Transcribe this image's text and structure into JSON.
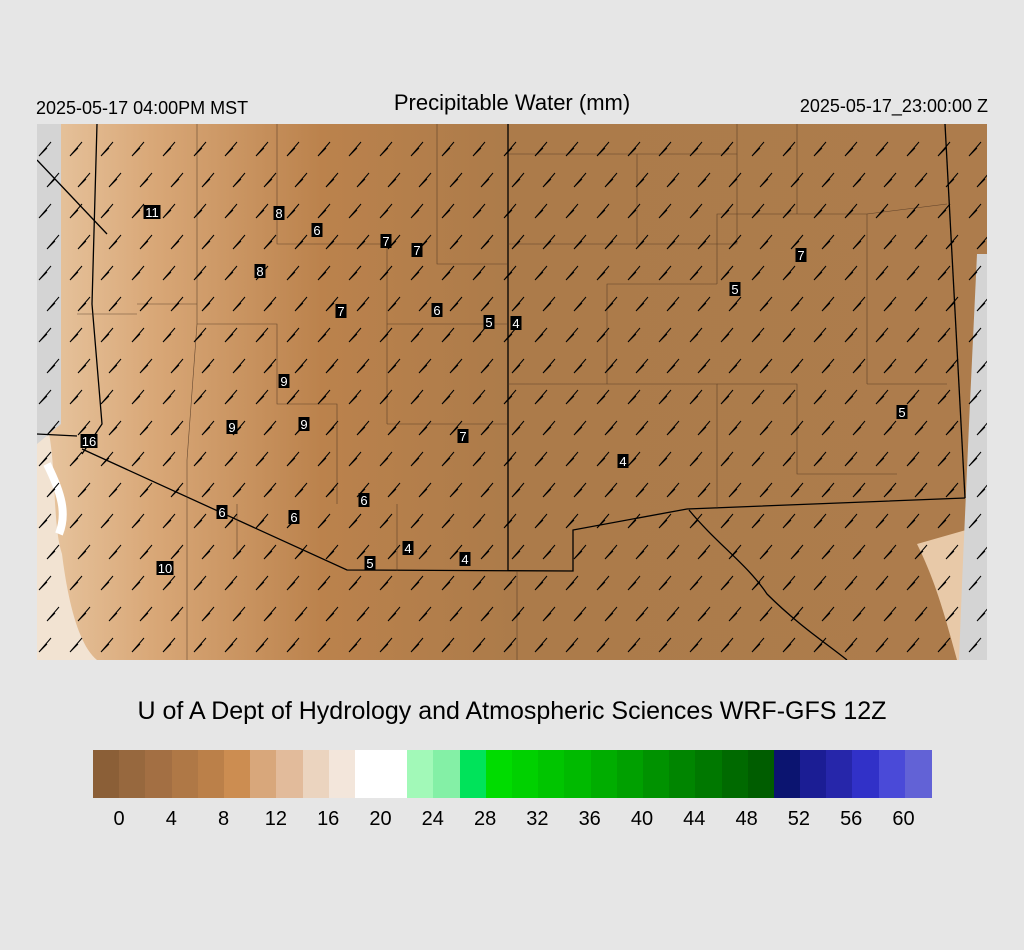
{
  "header": {
    "local_time": "2025-05-17 04:00PM MST",
    "title": "Precipitable Water (mm)",
    "utc_time": "2025-05-17_23:00:00 Z"
  },
  "footer": {
    "credit": "U of A Dept of Hydrology and Atmospheric Sciences WRF-GFS 12Z"
  },
  "map": {
    "background_color": "#ad7c4c",
    "station_values": [
      "11",
      "8",
      "6",
      "7",
      "7",
      "8",
      "7",
      "6",
      "5",
      "4",
      "7",
      "5",
      "9",
      "9",
      "9",
      "16",
      "7",
      "4",
      "5",
      "6",
      "6",
      "6",
      "4",
      "4",
      "5",
      "10"
    ]
  },
  "colorbar": {
    "colors": [
      "#8b5f37",
      "#97683e",
      "#a36f43",
      "#af7846",
      "#bb8049",
      "#cc8d51",
      "#d8a77b",
      "#e2bb9b",
      "#ebd4bf",
      "#f3e6db",
      "#ffffff",
      "#ffffff",
      "#a2f9b8",
      "#84f0a6",
      "#00e35a",
      "#00dc00",
      "#00d100",
      "#00c500",
      "#00ba00",
      "#00ad00",
      "#00a000",
      "#009200",
      "#008500",
      "#007800",
      "#006a00",
      "#005d00",
      "#0b1470",
      "#1b1d94",
      "#2626aa",
      "#3131c8",
      "#4a4ad8",
      "#6262d6"
    ],
    "tick_labels": [
      "0",
      "4",
      "8",
      "12",
      "16",
      "20",
      "24",
      "28",
      "32",
      "36",
      "40",
      "44",
      "48",
      "52",
      "56",
      "60"
    ]
  }
}
